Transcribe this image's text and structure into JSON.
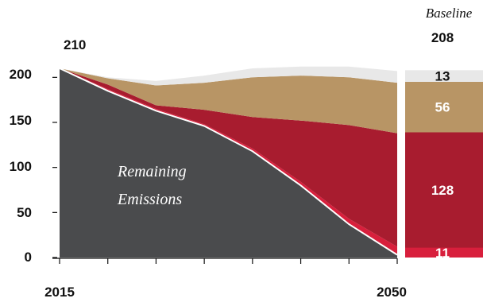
{
  "chart_data": {
    "type": "area",
    "x": [
      2015,
      2020,
      2025,
      2030,
      2035,
      2040,
      2045,
      2050
    ],
    "x_tick_labels": [
      "2015",
      "2050"
    ],
    "y_ticks": [
      "0",
      "50",
      "100",
      "150",
      "200"
    ],
    "ylim": [
      0,
      210
    ],
    "series": [
      {
        "color": "#4a4b4d",
        "values": [
          210,
          185,
          163,
          146,
          118,
          80,
          37,
          3
        ]
      },
      {
        "color": "#d81f3c",
        "values": [
          0,
          2,
          2,
          2,
          3,
          4,
          6,
          9
        ]
      },
      {
        "color": "#a81c2f",
        "values": [
          0,
          5,
          4,
          16,
          35,
          68,
          104,
          126
        ]
      },
      {
        "color": "#b89565",
        "values": [
          0,
          7,
          22,
          30,
          44,
          50,
          53,
          56
        ]
      },
      {
        "color": "#e8e8e8",
        "values": [
          0,
          1,
          5,
          8,
          10,
          10,
          12,
          13
        ]
      }
    ],
    "start_label": "210",
    "annotation": [
      "Remaining",
      "Emissions"
    ],
    "baseline": {
      "title": "Baseline",
      "total": "208",
      "segments": [
        {
          "label": "11",
          "value": 11,
          "color": "#d81f3c"
        },
        {
          "label": "128",
          "value": 128,
          "color": "#a81c2f"
        },
        {
          "label": "56",
          "value": 56,
          "color": "#b89565"
        },
        {
          "label": "13",
          "value": 13,
          "color": "#e8e8e8"
        }
      ]
    }
  }
}
